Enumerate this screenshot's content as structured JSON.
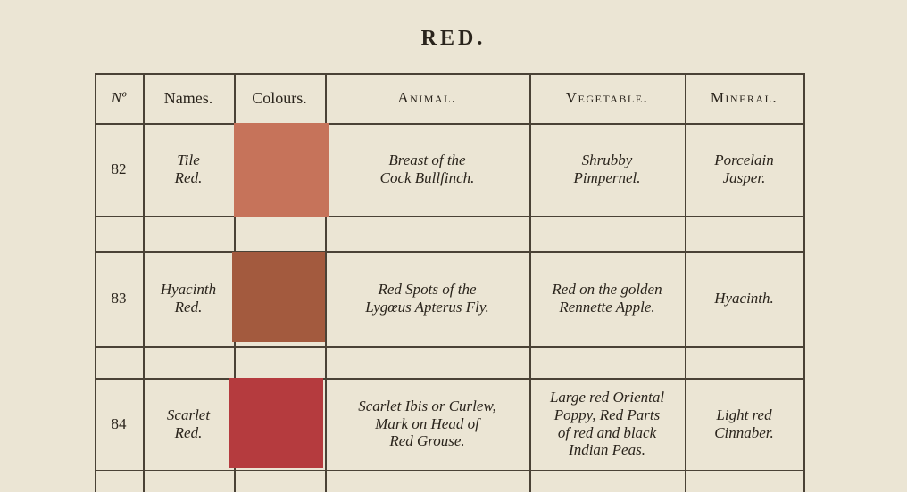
{
  "title": "RED.",
  "headers": [
    "Nº",
    "Names.",
    "Colours.",
    "Animal.",
    "Vegetable.",
    "Mineral."
  ],
  "rows": [
    {
      "number": "82",
      "name": "Tile\nRed.",
      "colour": "#c6735a",
      "animal": "Breast of the\nCock Bullfinch.",
      "vegetable": "Shrubby\nPimpernel.",
      "mineral": "Porcelain\nJasper."
    },
    {
      "number": "83",
      "name": "Hyacinth\nRed.",
      "colour": "#a35a3e",
      "animal": "Red Spots of the\nLygœus Apterus Fly.",
      "vegetable": "Red on the golden\nRennette Apple.",
      "mineral": "Hyacinth."
    },
    {
      "number": "84",
      "name": "Scarlet\nRed.",
      "colour": "#b53b3e",
      "animal": "Scarlet Ibis or Curlew,\nMark on Head of\nRed Grouse.",
      "vegetable": "Large red Oriental\nPoppy, Red Parts\nof red and black\nIndian Peas.",
      "mineral": "Light red\nCinnaber."
    }
  ]
}
